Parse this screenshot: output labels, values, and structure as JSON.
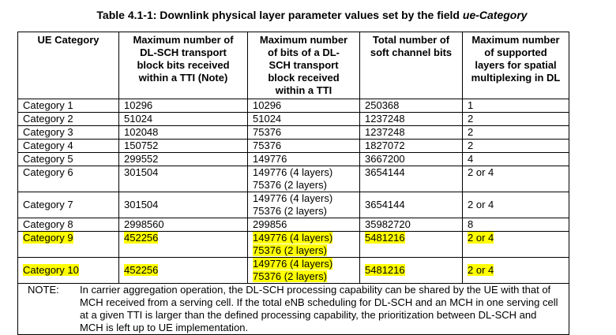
{
  "header": {
    "title": "Table 4.1-1: Downlink physical layer parameter values set by the field ",
    "title_emphasis": "ue-Category"
  },
  "table": {
    "columns": [
      [
        "UE Category"
      ],
      [
        "Maximum number of",
        "DL-SCH transport",
        "block bits received",
        "within a TTI (Note)"
      ],
      [
        "Maximum number",
        "of bits of a DL-",
        "SCH transport",
        "block received",
        "within a TTI"
      ],
      [
        "Total number of",
        "soft channel bits"
      ],
      [
        "Maximum number",
        "of supported",
        "layers for spatial",
        "multiplexing in DL"
      ]
    ],
    "highlight_color": "#ffff00",
    "rows": [
      {
        "cells": [
          [
            "Category 1"
          ],
          [
            "10296"
          ],
          [
            "10296"
          ],
          [
            "250368"
          ],
          [
            "1"
          ]
        ]
      },
      {
        "cells": [
          [
            "Category 2"
          ],
          [
            "51024"
          ],
          [
            "51024"
          ],
          [
            "1237248"
          ],
          [
            "2"
          ]
        ]
      },
      {
        "cells": [
          [
            "Category 3"
          ],
          [
            "102048"
          ],
          [
            "75376"
          ],
          [
            "1237248"
          ],
          [
            "2"
          ]
        ]
      },
      {
        "cells": [
          [
            "Category 4"
          ],
          [
            "150752"
          ],
          [
            "75376"
          ],
          [
            "1827072"
          ],
          [
            "2"
          ]
        ]
      },
      {
        "cells": [
          [
            "Category 5"
          ],
          [
            "299552"
          ],
          [
            "149776"
          ],
          [
            "3667200"
          ],
          [
            "4"
          ]
        ]
      },
      {
        "cells": [
          [
            "Category 6"
          ],
          [
            "301504"
          ],
          [
            "149776 (4 layers)",
            "75376 (2 layers)"
          ],
          [
            "3654144"
          ],
          [
            "2 or 4"
          ]
        ]
      },
      {
        "cells": [
          [
            "Category 7"
          ],
          [
            "301504"
          ],
          [
            "149776 (4 layers)",
            "75376 (2 layers)"
          ],
          [
            "3654144"
          ],
          [
            "2 or 4"
          ]
        ],
        "middle": true
      },
      {
        "cells": [
          [
            "Category 8"
          ],
          [
            "2998560"
          ],
          [
            "299856"
          ],
          [
            "35982720"
          ],
          [
            "8"
          ]
        ]
      },
      {
        "cells": [
          [
            "Category 9"
          ],
          [
            "452256"
          ],
          [
            "149776 (4 layers)",
            "75376 (2 layers)"
          ],
          [
            "5481216"
          ],
          [
            "2 or 4"
          ]
        ],
        "highlight": true
      },
      {
        "cells": [
          [
            "Category 10"
          ],
          [
            "452256"
          ],
          [
            "149776 (4 layers)",
            "75376 (2 layers)"
          ],
          [
            "5481216"
          ],
          [
            "2 or 4"
          ]
        ],
        "highlight": true,
        "middle": true
      }
    ],
    "note": {
      "label": "NOTE:",
      "text": "In carrier aggregation operation, the DL-SCH processing capability can be shared by the UE with that of MCH received from a serving cell. If the total eNB scheduling for DL-SCH and an MCH in one serving cell at a given TTI is larger than the defined processing capability, the prioritization between DL-SCH and MCH is left up to UE implementation."
    }
  }
}
